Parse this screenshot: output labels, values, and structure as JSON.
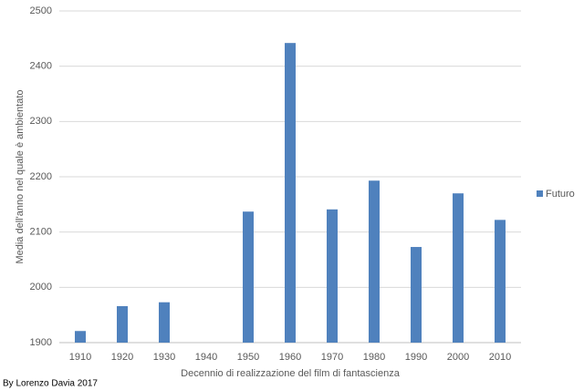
{
  "chart_data": {
    "type": "bar",
    "x_label": "Decennio di realizzazione del film di fantascienza",
    "y_label": "Media dell'anno nel quale è ambientato",
    "credit": "By Lorenzo Davia 2017",
    "categories": [
      "1910",
      "1920",
      "1930",
      "1940",
      "1950",
      "1960",
      "1970",
      "1980",
      "1990",
      "2000",
      "2010"
    ],
    "series": [
      {
        "name": "Futuro",
        "color": "#4f81bd",
        "values": [
          1921,
          1966,
          1973,
          null,
          2137,
          2442,
          2141,
          2193,
          2073,
          2170,
          2122
        ]
      }
    ],
    "ylim": [
      1900,
      2500
    ],
    "yticks": [
      1900,
      2000,
      2100,
      2200,
      2300,
      2400,
      2500
    ],
    "grid": true,
    "legend": "right"
  }
}
